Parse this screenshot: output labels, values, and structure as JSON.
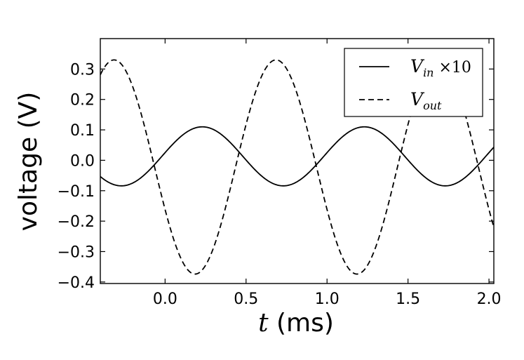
{
  "chart_data": {
    "type": "line",
    "xlabel": {
      "var": "t",
      "unit": " (ms)"
    },
    "ylabel": "voltage (V)",
    "xlim": [
      -0.4,
      2.03
    ],
    "ylim": [
      -0.405,
      0.4
    ],
    "xticks": [
      0.0,
      0.5,
      1.0,
      1.5,
      2.0
    ],
    "xtick_labels": [
      "0.0",
      "0.5",
      "1.0",
      "1.5",
      "2.0"
    ],
    "yticks": [
      -0.4,
      -0.3,
      -0.2,
      -0.1,
      0.0,
      0.1,
      0.2,
      0.3
    ],
    "ytick_labels": [
      "−0.4",
      "−0.3",
      "−0.2",
      "−0.1",
      "0.0",
      "0.1",
      "0.2",
      "0.3"
    ],
    "grid": false,
    "legend_position": "top-right",
    "series": [
      {
        "name": "V_in ×10",
        "legend": {
          "base": "V",
          "sub": "in",
          "suffix": " ×10"
        },
        "style": "solid",
        "color": "#000000",
        "model": {
          "offset": 0.013,
          "amplitude": 0.097,
          "period": 1.0,
          "phase_peak": 0.23
        },
        "x": [
          -0.4,
          -0.3,
          -0.2,
          -0.1,
          0.0,
          0.1,
          0.2,
          0.3,
          0.4,
          0.5,
          0.6,
          0.7,
          0.8,
          0.9,
          1.0,
          1.1,
          1.2,
          1.3,
          1.4,
          1.5,
          1.6,
          1.7,
          1.8,
          1.9,
          2.0
        ],
        "y": [
          -0.071,
          -0.082,
          -0.068,
          -0.022,
          0.037,
          0.088,
          0.108,
          0.089,
          0.035,
          -0.024,
          -0.071,
          -0.083,
          -0.061,
          -0.011,
          0.047,
          0.093,
          0.109,
          0.084,
          0.028,
          -0.032,
          -0.075,
          -0.083,
          -0.055,
          -0.003,
          0.01
        ]
      },
      {
        "name": "V_out",
        "legend": {
          "base": "V",
          "sub": "out",
          "suffix": ""
        },
        "style": "dashed",
        "color": "#000000",
        "model": {
          "offset": -0.022,
          "amplitude": 0.352,
          "period": 1.0,
          "phase_peak": 0.685
        },
        "x": [
          -0.4,
          -0.3,
          -0.2,
          -0.1,
          0.0,
          0.1,
          0.2,
          0.3,
          0.4,
          0.5,
          0.6,
          0.7,
          0.8,
          0.9,
          1.0,
          1.1,
          1.2,
          1.3,
          1.4,
          1.5,
          1.6,
          1.7,
          1.8,
          1.9,
          2.0
        ],
        "y": [
          0.323,
          0.302,
          0.171,
          -0.034,
          -0.234,
          -0.353,
          -0.351,
          -0.229,
          -0.026,
          0.178,
          0.308,
          0.33,
          0.23,
          0.032,
          -0.181,
          -0.335,
          -0.372,
          -0.282,
          -0.09,
          0.128,
          0.292,
          0.33,
          0.206,
          -0.005,
          -0.13
        ]
      }
    ]
  }
}
